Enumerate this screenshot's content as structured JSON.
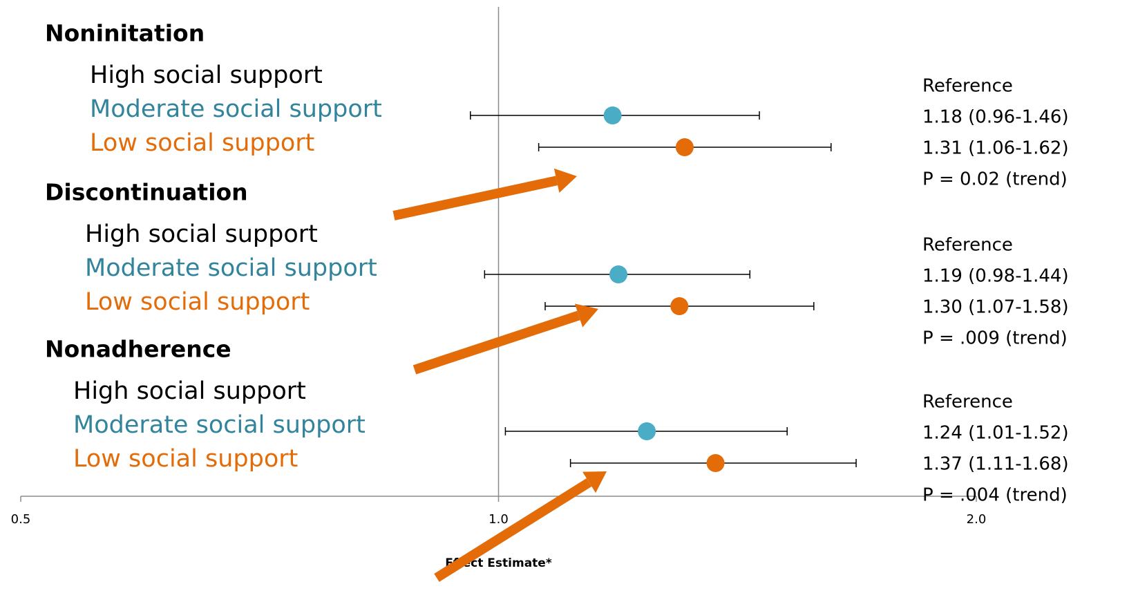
{
  "chart_data": {
    "type": "forest",
    "x_label": "Effect Estimate*",
    "xlim": [
      0.5,
      2.0
    ],
    "xticks": [
      0.5,
      {
        "value": 1.0,
        "label": "1.0"
      },
      {
        "value": 2.0,
        "label": "2.0"
      }
    ],
    "log_scale": true,
    "reference_line": 1,
    "groups": [
      {
        "name": "Noninitation",
        "trend": "P = 0.02 (trend)",
        "rows": [
          {
            "label": "High social support",
            "color": "#000000",
            "text": "Reference"
          },
          {
            "label": "Moderate social support",
            "color": "#4bacc6",
            "estimate": 1.18,
            "low": 0.96,
            "high": 1.46,
            "text": "1.18 (0.96-1.46)"
          },
          {
            "label": "Low social support",
            "color": "#e36c09",
            "estimate": 1.31,
            "low": 1.06,
            "high": 1.62,
            "text": "1.31 (1.06-1.62)"
          }
        ]
      },
      {
        "name": "Discontinuation",
        "trend": "P = .009 (trend)",
        "rows": [
          {
            "label": "High social support",
            "color": "#000000",
            "text": "Reference"
          },
          {
            "label": "Moderate social support",
            "color": "#4bacc6",
            "estimate": 1.19,
            "low": 0.98,
            "high": 1.44,
            "text": "1.19 (0.98-1.44)"
          },
          {
            "label": "Low social support",
            "color": "#e36c09",
            "estimate": 1.3,
            "low": 1.07,
            "high": 1.58,
            "text": "1.30 (1.07-1.58)"
          }
        ]
      },
      {
        "name": "Nonadherence",
        "trend": "P = .004 (trend)",
        "rows": [
          {
            "label": "High social support",
            "color": "#000000",
            "text": "Reference"
          },
          {
            "label": "Moderate social support",
            "color": "#4bacc6",
            "estimate": 1.24,
            "low": 1.01,
            "high": 1.52,
            "text": "1.24 (1.01-1.52)"
          },
          {
            "label": "Low social support",
            "color": "#e36c09",
            "estimate": 1.37,
            "low": 1.11,
            "high": 1.68,
            "text": "1.37 (1.11-1.68)"
          }
        ]
      }
    ]
  }
}
